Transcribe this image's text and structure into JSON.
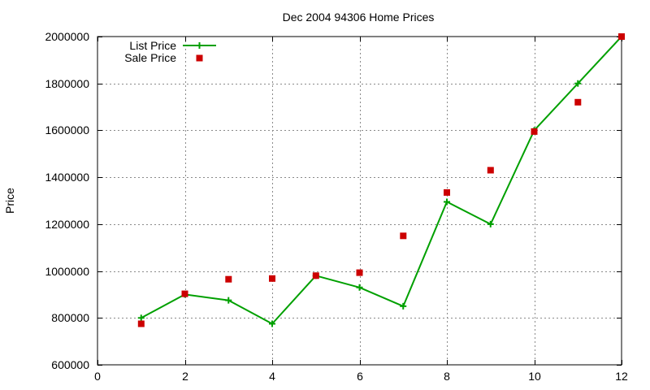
{
  "colors": {
    "list_price": "#00a000",
    "sale_price": "#cc0000",
    "axis": "#000000",
    "grid": "#8a8a8a",
    "background": "#ffffff"
  },
  "chart_data": {
    "type": "line",
    "title": "Dec 2004 94306 Home Prices",
    "xlabel": "",
    "ylabel": "Price",
    "xlim": [
      0,
      12
    ],
    "ylim": [
      600000,
      2000000
    ],
    "x_ticks": [
      "0",
      "2",
      "4",
      "6",
      "8",
      "10",
      "12"
    ],
    "y_ticks": [
      "600000",
      "800000",
      "1000000",
      "1200000",
      "1400000",
      "1600000",
      "1800000",
      "2000000"
    ],
    "grid": true,
    "legend_position": "top-left",
    "series": [
      {
        "name": "List Price",
        "style": "line-with-plus-markers",
        "x": [
          1,
          2,
          3,
          4,
          5,
          6,
          7,
          8,
          9,
          10,
          11,
          12
        ],
        "values": [
          800000,
          900000,
          875000,
          775000,
          980000,
          930000,
          850000,
          1295000,
          1200000,
          1600000,
          1800000,
          2000000
        ]
      },
      {
        "name": "Sale Price",
        "style": "square-markers",
        "x": [
          1,
          2,
          3,
          4,
          5,
          6,
          7,
          8,
          9,
          10,
          11,
          12
        ],
        "values": [
          775000,
          903000,
          965000,
          968000,
          980000,
          993000,
          1150000,
          1335000,
          1430000,
          1595000,
          1720000,
          2000000
        ]
      }
    ]
  }
}
